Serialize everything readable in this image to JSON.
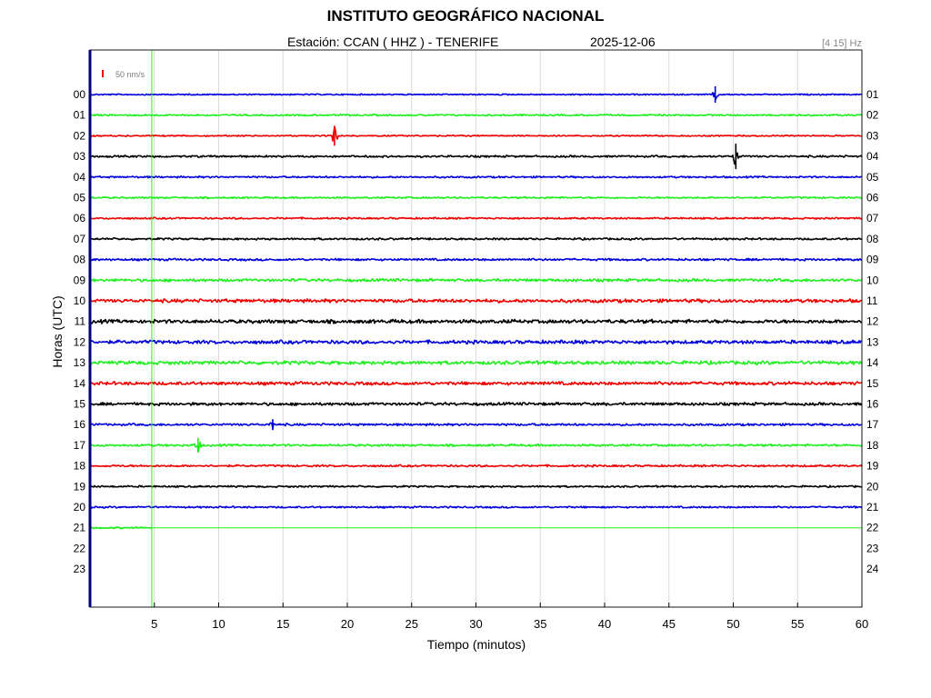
{
  "header": {
    "title": "INSTITUTO GEOGRÁFICO NACIONAL",
    "station_line": "Estación:  CCAN ( HHZ ) - TENERIFE",
    "date": "2025-12-06",
    "filter": "[4 15] Hz"
  },
  "colors": {
    "blue": "#0000dd",
    "green": "#22ee22",
    "red": "#ee0000",
    "black": "#000000",
    "grid": "#dcdcdc",
    "marker": "#22ee22",
    "frame": "#1a1a1a",
    "frame_left": "#00007a"
  },
  "chart_data": {
    "type": "line",
    "subtype": "helicorder",
    "title": "INSTITUTO GEOGRÁFICO NACIONAL",
    "xlabel": "Tiempo (minutos)",
    "ylabel": "Horas (UTC)",
    "xlim": [
      0,
      60
    ],
    "x_ticks": [
      5,
      10,
      15,
      20,
      25,
      30,
      35,
      40,
      45,
      50,
      55,
      60
    ],
    "grid": true,
    "scale_label": "50 nm/s",
    "left_hour_labels": [
      "00",
      "01",
      "02",
      "03",
      "04",
      "05",
      "06",
      "07",
      "08",
      "09",
      "10",
      "11",
      "12",
      "13",
      "14",
      "15",
      "16",
      "17",
      "18",
      "19",
      "20",
      "21",
      "22",
      "23"
    ],
    "right_hour_labels": [
      "01",
      "02",
      "03",
      "04",
      "05",
      "06",
      "07",
      "08",
      "09",
      "10",
      "11",
      "12",
      "13",
      "14",
      "15",
      "16",
      "17",
      "18",
      "19",
      "20",
      "21",
      "22",
      "23",
      "24"
    ],
    "current_time_minute": 4.8,
    "series": [
      {
        "hour": 0,
        "color": "blue",
        "noise": 0.6,
        "end_minute": 60,
        "events": [
          {
            "minute": 48.6,
            "amp": 9
          }
        ]
      },
      {
        "hour": 1,
        "color": "green",
        "noise": 0.8,
        "end_minute": 60,
        "events": []
      },
      {
        "hour": 2,
        "color": "red",
        "noise": 0.6,
        "end_minute": 60,
        "events": [
          {
            "minute": 19.0,
            "amp": 11
          }
        ]
      },
      {
        "hour": 3,
        "color": "black",
        "noise": 0.9,
        "end_minute": 60,
        "events": [
          {
            "minute": 50.2,
            "amp": 14
          }
        ]
      },
      {
        "hour": 4,
        "color": "blue",
        "noise": 0.8,
        "end_minute": 60,
        "events": []
      },
      {
        "hour": 5,
        "color": "green",
        "noise": 0.8,
        "end_minute": 60,
        "events": []
      },
      {
        "hour": 6,
        "color": "red",
        "noise": 0.8,
        "end_minute": 60,
        "events": []
      },
      {
        "hour": 7,
        "color": "black",
        "noise": 0.9,
        "end_minute": 60,
        "events": []
      },
      {
        "hour": 8,
        "color": "blue",
        "noise": 1.0,
        "end_minute": 60,
        "events": []
      },
      {
        "hour": 9,
        "color": "green",
        "noise": 1.3,
        "end_minute": 60,
        "events": []
      },
      {
        "hour": 10,
        "color": "red",
        "noise": 1.6,
        "end_minute": 60,
        "events": []
      },
      {
        "hour": 11,
        "color": "black",
        "noise": 1.7,
        "end_minute": 60,
        "events": []
      },
      {
        "hour": 12,
        "color": "blue",
        "noise": 1.6,
        "end_minute": 60,
        "events": []
      },
      {
        "hour": 13,
        "color": "green",
        "noise": 1.6,
        "end_minute": 60,
        "events": []
      },
      {
        "hour": 14,
        "color": "red",
        "noise": 1.5,
        "end_minute": 60,
        "events": []
      },
      {
        "hour": 15,
        "color": "black",
        "noise": 1.3,
        "end_minute": 60,
        "events": []
      },
      {
        "hour": 16,
        "color": "blue",
        "noise": 1.0,
        "end_minute": 60,
        "events": [
          {
            "minute": 14.2,
            "amp": 6
          }
        ]
      },
      {
        "hour": 17,
        "color": "green",
        "noise": 1.0,
        "end_minute": 60,
        "events": [
          {
            "minute": 8.4,
            "amp": 8
          }
        ]
      },
      {
        "hour": 18,
        "color": "red",
        "noise": 0.9,
        "end_minute": 60,
        "events": []
      },
      {
        "hour": 19,
        "color": "black",
        "noise": 0.8,
        "end_minute": 60,
        "events": []
      },
      {
        "hour": 20,
        "color": "blue",
        "noise": 0.8,
        "end_minute": 60,
        "events": []
      },
      {
        "hour": 21,
        "color": "green",
        "noise": 0.8,
        "end_minute": 4.8,
        "events": []
      }
    ]
  }
}
